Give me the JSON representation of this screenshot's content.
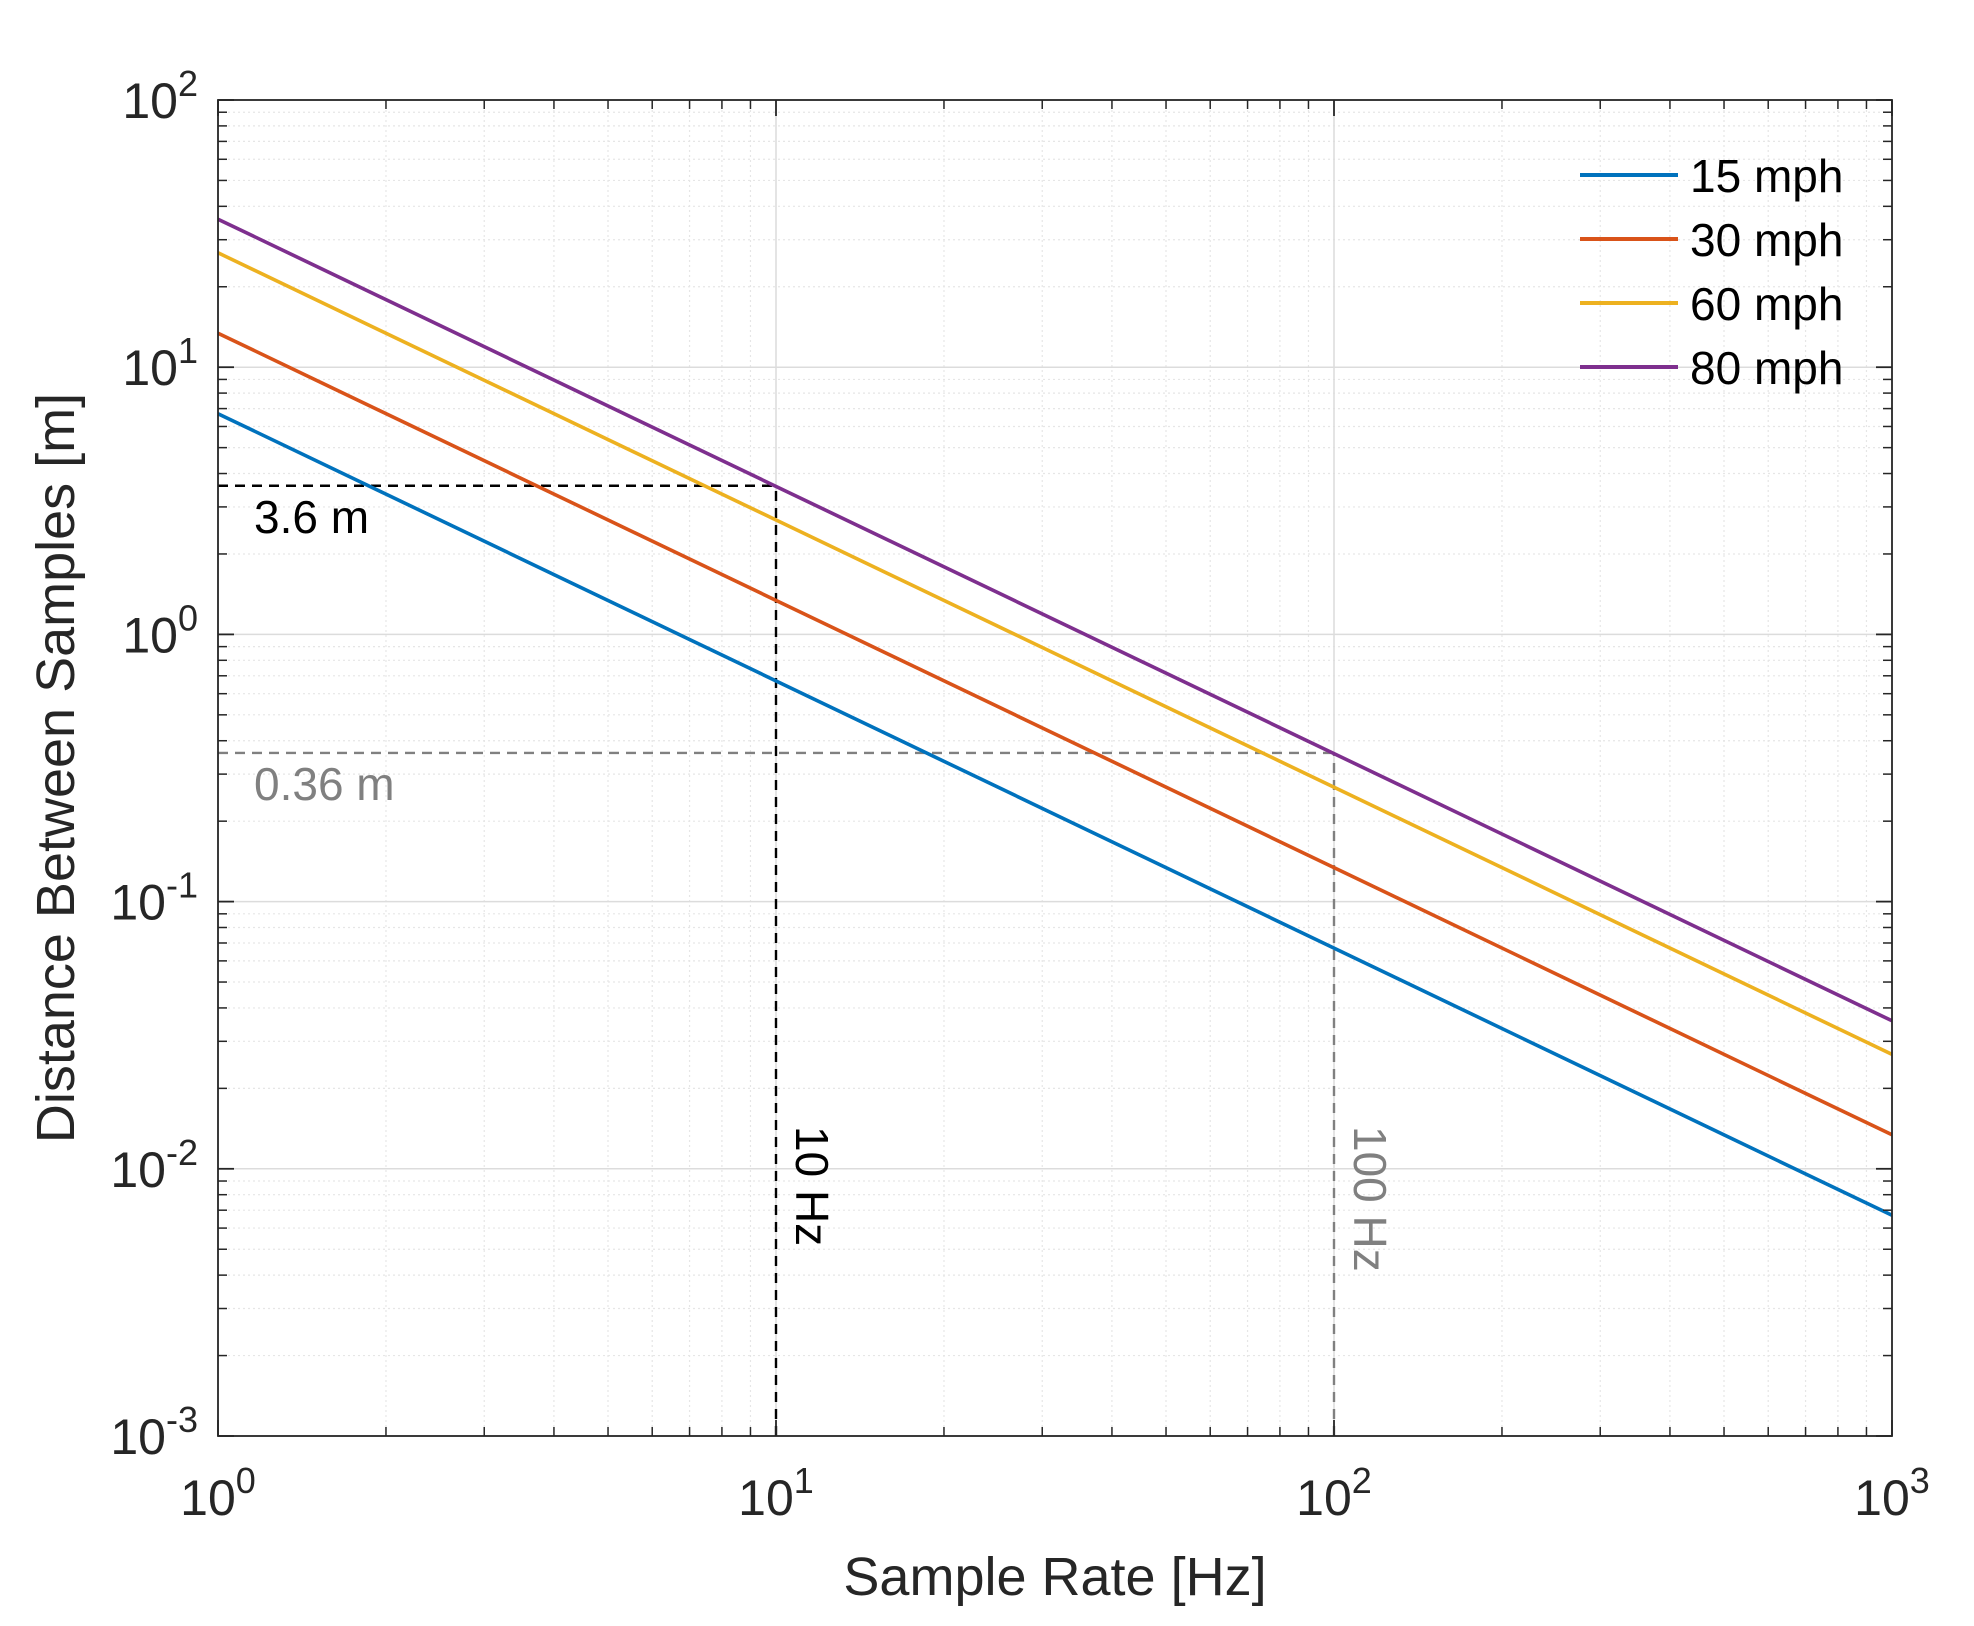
{
  "chart_data": {
    "type": "line",
    "xlabel": "Sample Rate [Hz]",
    "ylabel": "Distance Between Samples [m]",
    "xscale": "log",
    "yscale": "log",
    "xlim": [
      1,
      1000
    ],
    "ylim": [
      0.001,
      100
    ],
    "x_ticks": [
      {
        "value": 1,
        "base": "10",
        "exp": "0"
      },
      {
        "value": 10,
        "base": "10",
        "exp": "1"
      },
      {
        "value": 100,
        "base": "10",
        "exp": "2"
      },
      {
        "value": 1000,
        "base": "10",
        "exp": "3"
      }
    ],
    "y_ticks": [
      {
        "value": 0.001,
        "base": "10",
        "exp": "-3"
      },
      {
        "value": 0.01,
        "base": "10",
        "exp": "-2"
      },
      {
        "value": 0.1,
        "base": "10",
        "exp": "-1"
      },
      {
        "value": 1,
        "base": "10",
        "exp": "0"
      },
      {
        "value": 10,
        "base": "10",
        "exp": "1"
      },
      {
        "value": 100,
        "base": "10",
        "exp": "2"
      }
    ],
    "grid": true,
    "minor_grid": true,
    "legend_position": "top-right",
    "series": [
      {
        "name": "15 mph",
        "color": "#0072BD",
        "x": [
          1,
          1000
        ],
        "y": [
          6.7,
          0.0067
        ]
      },
      {
        "name": "30 mph",
        "color": "#D95319",
        "x": [
          1,
          1000
        ],
        "y": [
          13.4,
          0.0134
        ]
      },
      {
        "name": "60 mph",
        "color": "#EDB120",
        "x": [
          1,
          1000
        ],
        "y": [
          26.8,
          0.0268
        ]
      },
      {
        "name": "80 mph",
        "color": "#7E2F8E",
        "x": [
          1,
          1000
        ],
        "y": [
          35.8,
          0.0358
        ]
      }
    ],
    "annotations": [
      {
        "text": "3.6 m",
        "color": "#000000",
        "type": "horizontal",
        "y": 3.6,
        "x_from": 1,
        "x_to": 10
      },
      {
        "text": "10 Hz",
        "color": "#000000",
        "type": "vertical",
        "x": 10,
        "y_from": 0.001,
        "y_to": 3.6
      },
      {
        "text": "0.36 m",
        "color": "#808080",
        "type": "horizontal",
        "y": 0.36,
        "x_from": 1,
        "x_to": 100
      },
      {
        "text": "100 Hz",
        "color": "#808080",
        "type": "vertical",
        "x": 100,
        "y_from": 0.001,
        "y_to": 0.36
      }
    ]
  }
}
